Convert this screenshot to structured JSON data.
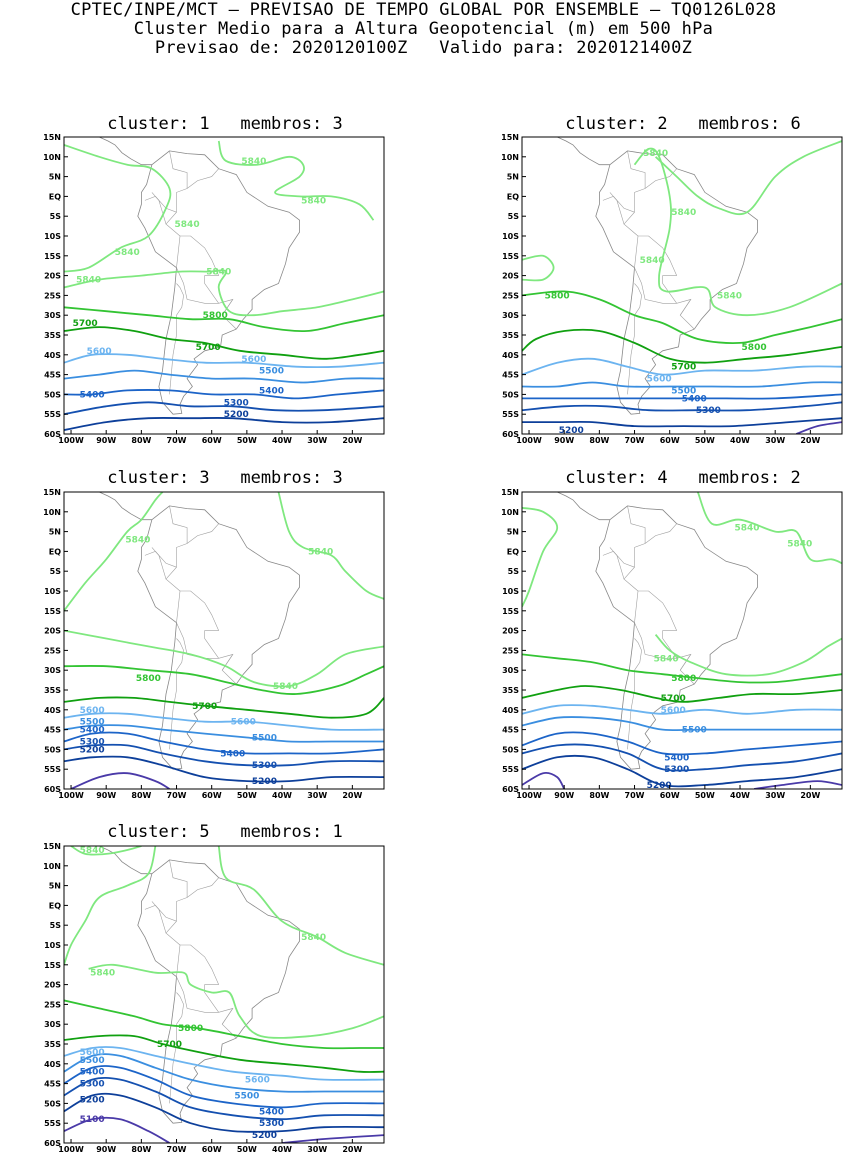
{
  "header": {
    "line1": "CPTEC/INPE/MCT — PREVISAO DE TEMPO GLOBAL POR ENSEMBLE — TQ0126L028",
    "line2": "Cluster Medio para a Altura Geopotencial (m) em 500 hPa",
    "line3": "Previsao de: 2020120100Z   Valido para: 2020121400Z"
  },
  "axes": {
    "lat_ticks": [
      "15N",
      "10N",
      "5N",
      "EQ",
      "5S",
      "10S",
      "15S",
      "20S",
      "25S",
      "30S",
      "35S",
      "40S",
      "45S",
      "50S",
      "55S",
      "60S"
    ],
    "lon_ticks": [
      "100W",
      "90W",
      "80W",
      "70W",
      "60W",
      "50W",
      "40W",
      "30W",
      "20W"
    ]
  },
  "colors": {
    "c5840": "#7fe87f",
    "c5800": "#33c433",
    "c5700": "#10a010",
    "c5600": "#6cb4f0",
    "c5500": "#3a8ee0",
    "c5400": "#1c64c8",
    "c5300": "#1450b0",
    "c5200": "#0d3f9a",
    "c5100": "#4a3aa8",
    "coast": "#888888"
  },
  "clusters": [
    {
      "title": "cluster: 1   membros: 3",
      "labels": [
        {
          "text": "5840",
          "lon": -48,
          "lat": 9
        },
        {
          "text": "5840",
          "lon": -31,
          "lat": -1
        },
        {
          "text": "5840",
          "lon": -67,
          "lat": -7
        },
        {
          "text": "5840",
          "lon": -84,
          "lat": -14
        },
        {
          "text": "5840",
          "lon": -95,
          "lat": -21
        },
        {
          "text": "5840",
          "lon": -58,
          "lat": -19
        },
        {
          "text": "5800",
          "lon": -59,
          "lat": -30
        },
        {
          "text": "5700",
          "lon": -96,
          "lat": -32
        },
        {
          "text": "5700",
          "lon": -61,
          "lat": -38
        },
        {
          "text": "5600",
          "lon": -92,
          "lat": -39
        },
        {
          "text": "5600",
          "lon": -48,
          "lat": -41
        },
        {
          "text": "5500",
          "lon": -43,
          "lat": -44
        },
        {
          "text": "5400",
          "lon": -94,
          "lat": -50
        },
        {
          "text": "5400",
          "lon": -43,
          "lat": -49
        },
        {
          "text": "5300",
          "lon": -53,
          "lat": -52
        },
        {
          "text": "5200",
          "lon": -53,
          "lat": -55
        }
      ]
    },
    {
      "title": "cluster: 2   membros: 6",
      "labels": [
        {
          "text": "5840",
          "lon": -64,
          "lat": 11
        },
        {
          "text": "5840",
          "lon": -56,
          "lat": -4
        },
        {
          "text": "5840",
          "lon": -65,
          "lat": -16
        },
        {
          "text": "5840",
          "lon": -43,
          "lat": -25
        },
        {
          "text": "5800",
          "lon": -92,
          "lat": -25
        },
        {
          "text": "5800",
          "lon": -36,
          "lat": -38
        },
        {
          "text": "5700",
          "lon": -56,
          "lat": -43
        },
        {
          "text": "5600",
          "lon": -63,
          "lat": -46
        },
        {
          "text": "5500",
          "lon": -56,
          "lat": -49
        },
        {
          "text": "5400",
          "lon": -53,
          "lat": -51
        },
        {
          "text": "5300",
          "lon": -49,
          "lat": -54
        },
        {
          "text": "5200",
          "lon": -88,
          "lat": -59
        }
      ]
    },
    {
      "title": "cluster: 3   membros: 3",
      "labels": [
        {
          "text": "5840",
          "lon": -81,
          "lat": 3
        },
        {
          "text": "5840",
          "lon": -29,
          "lat": 0
        },
        {
          "text": "5800",
          "lon": -78,
          "lat": -32
        },
        {
          "text": "5840",
          "lon": -39,
          "lat": -34
        },
        {
          "text": "5700",
          "lon": -62,
          "lat": -39
        },
        {
          "text": "5600",
          "lon": -94,
          "lat": -40
        },
        {
          "text": "5600",
          "lon": -51,
          "lat": -43
        },
        {
          "text": "5500",
          "lon": -94,
          "lat": -43
        },
        {
          "text": "5500",
          "lon": -45,
          "lat": -47
        },
        {
          "text": "5400",
          "lon": -94,
          "lat": -45
        },
        {
          "text": "5400",
          "lon": -54,
          "lat": -51
        },
        {
          "text": "5300",
          "lon": -94,
          "lat": -48
        },
        {
          "text": "5300",
          "lon": -45,
          "lat": -54
        },
        {
          "text": "5200",
          "lon": -94,
          "lat": -50
        },
        {
          "text": "5200",
          "lon": -45,
          "lat": -58
        }
      ]
    },
    {
      "title": "cluster: 4   membros: 2",
      "labels": [
        {
          "text": "5840",
          "lon": -38,
          "lat": 6
        },
        {
          "text": "5840",
          "lon": -23,
          "lat": 2
        },
        {
          "text": "5840",
          "lon": -61,
          "lat": -27
        },
        {
          "text": "5800",
          "lon": -56,
          "lat": -32
        },
        {
          "text": "5700",
          "lon": -59,
          "lat": -37
        },
        {
          "text": "5600",
          "lon": -59,
          "lat": -40
        },
        {
          "text": "5500",
          "lon": -53,
          "lat": -45
        },
        {
          "text": "5400",
          "lon": -58,
          "lat": -52
        },
        {
          "text": "5300",
          "lon": -58,
          "lat": -55
        },
        {
          "text": "5200",
          "lon": -63,
          "lat": -59
        }
      ]
    },
    {
      "title": "cluster: 5   membros: 1",
      "labels": [
        {
          "text": "5840",
          "lon": -94,
          "lat": 14
        },
        {
          "text": "5840",
          "lon": -31,
          "lat": -8
        },
        {
          "text": "5840",
          "lon": -91,
          "lat": -17
        },
        {
          "text": "5800",
          "lon": -66,
          "lat": -31
        },
        {
          "text": "5700",
          "lon": -72,
          "lat": -35
        },
        {
          "text": "5600",
          "lon": -94,
          "lat": -37
        },
        {
          "text": "5600",
          "lon": -47,
          "lat": -44
        },
        {
          "text": "5500",
          "lon": -94,
          "lat": -39
        },
        {
          "text": "5500",
          "lon": -50,
          "lat": -48
        },
        {
          "text": "5400",
          "lon": -94,
          "lat": -42
        },
        {
          "text": "5400",
          "lon": -43,
          "lat": -52
        },
        {
          "text": "5300",
          "lon": -94,
          "lat": -45
        },
        {
          "text": "5300",
          "lon": -43,
          "lat": -55
        },
        {
          "text": "5200",
          "lon": -94,
          "lat": -49
        },
        {
          "text": "5200",
          "lon": -45,
          "lat": -58
        },
        {
          "text": "5100",
          "lon": -94,
          "lat": -54
        }
      ]
    }
  ]
}
